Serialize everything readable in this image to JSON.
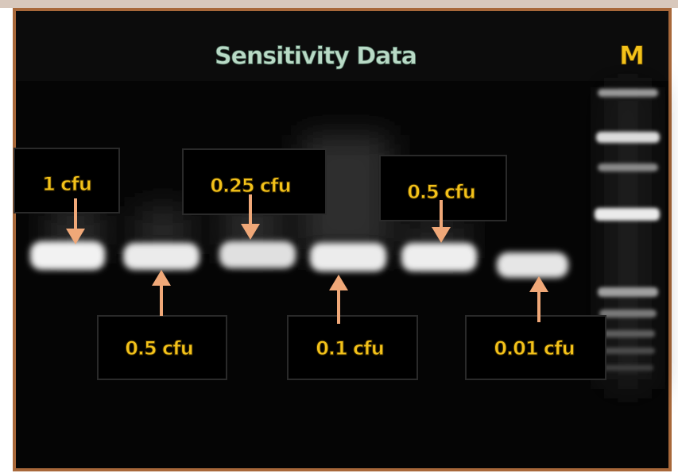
{
  "title": "Sensitivity Data",
  "marker_label": "M",
  "lane_labels": [
    "1 cfu",
    "0.5 cfu",
    "0.25 cfu",
    "0.1 cfu",
    "0.5 cfu",
    "0.01 cfu"
  ]
}
